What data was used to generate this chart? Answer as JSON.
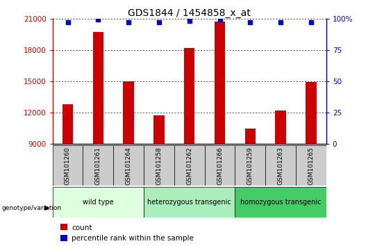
{
  "title": "GDS1844 / 1454858_x_at",
  "samples": [
    "GSM101260",
    "GSM101261",
    "GSM101264",
    "GSM101258",
    "GSM101262",
    "GSM101266",
    "GSM101259",
    "GSM101263",
    "GSM101265"
  ],
  "counts": [
    12800,
    19700,
    15000,
    11700,
    18200,
    20700,
    10500,
    12200,
    14900
  ],
  "percentile_ranks": [
    97,
    99,
    97,
    97,
    98,
    99,
    97,
    97,
    97
  ],
  "bar_color": "#cc0000",
  "dot_color": "#0000cc",
  "ylim_left": [
    9000,
    21000
  ],
  "ylim_right": [
    0,
    100
  ],
  "yticks_left": [
    9000,
    12000,
    15000,
    18000,
    21000
  ],
  "yticks_right": [
    0,
    25,
    50,
    75,
    100
  ],
  "groups": [
    {
      "label": "wild type",
      "start": 0,
      "end": 2,
      "color": "#ddffdd"
    },
    {
      "label": "heterozygous transgenic",
      "start": 3,
      "end": 5,
      "color": "#aaeebb"
    },
    {
      "label": "homozygous transgenic",
      "start": 6,
      "end": 8,
      "color": "#44cc66"
    }
  ],
  "legend_count_color": "#cc0000",
  "legend_dot_color": "#0000cc",
  "tick_label_bg": "#cccccc",
  "title_fontsize": 10,
  "axis_fontsize": 7.5,
  "label_fontsize": 6.5,
  "group_fontsize": 7.0
}
